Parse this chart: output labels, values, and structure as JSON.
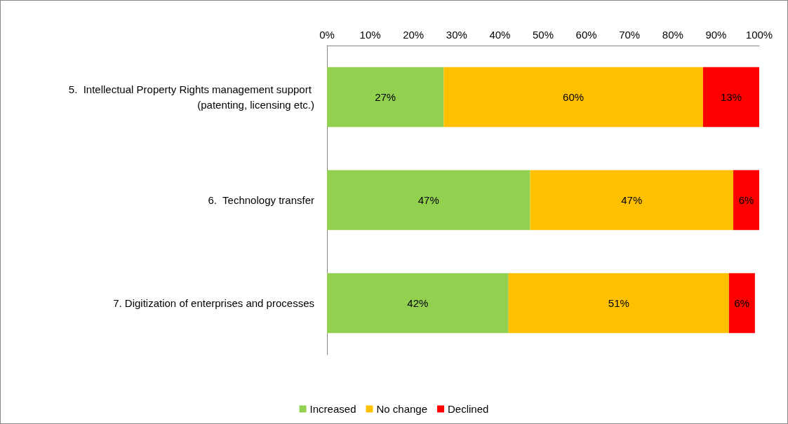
{
  "chart_data": {
    "type": "bar",
    "orientation": "horizontal",
    "stacked": true,
    "categories": [
      "5.  Intellectual Property Rights management support (patenting, licensing etc.)",
      "6.  Technology transfer",
      "7. Digitization of enterprises and processes"
    ],
    "series": [
      {
        "name": "Increased",
        "color": "#92d050",
        "values": [
          27,
          47,
          42
        ],
        "value_labels": [
          "27%",
          "47%",
          "42%"
        ]
      },
      {
        "name": "No change",
        "color": "#ffc000",
        "values": [
          60,
          47,
          51
        ],
        "value_labels": [
          "60%",
          "47%",
          "51%"
        ]
      },
      {
        "name": "Declined",
        "color": "#ff0000",
        "values": [
          13,
          6,
          6
        ],
        "value_labels": [
          "13%",
          "6%",
          "6%"
        ]
      }
    ],
    "xlim": [
      0,
      100
    ],
    "xticks": [
      {
        "value": 0,
        "label": "0%"
      },
      {
        "value": 10,
        "label": "10%"
      },
      {
        "value": 20,
        "label": "20%"
      },
      {
        "value": 30,
        "label": "30%"
      },
      {
        "value": 40,
        "label": "40%"
      },
      {
        "value": 50,
        "label": "50%"
      },
      {
        "value": 60,
        "label": "60%"
      },
      {
        "value": 70,
        "label": "70%"
      },
      {
        "value": 80,
        "label": "80%"
      },
      {
        "value": 90,
        "label": "90%"
      },
      {
        "value": 100,
        "label": "100%"
      }
    ],
    "grid": false,
    "legend": "bottom"
  }
}
